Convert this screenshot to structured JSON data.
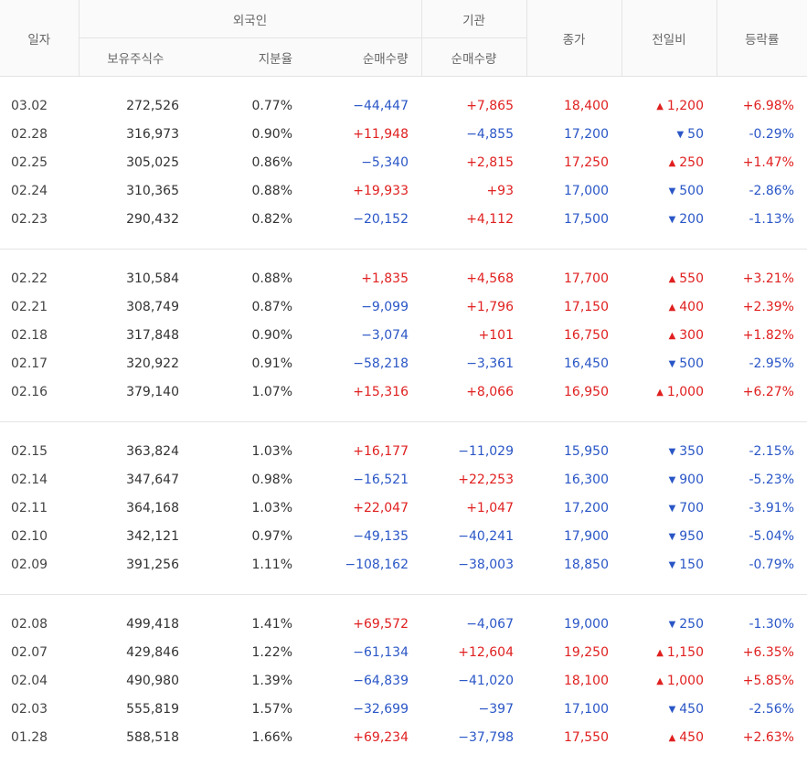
{
  "header": {
    "date": "일자",
    "foreign": "외국인",
    "institution": "기관",
    "close": "종가",
    "change": "전일비",
    "rate": "등락률",
    "holdings": "보유주식수",
    "ratio": "지분율",
    "foreign_net": "순매수량",
    "inst_net": "순매수량"
  },
  "groups": [
    [
      {
        "date": "03.02",
        "holdings": "272,526",
        "ratio": "0.77%",
        "foreign_net": "−44,447",
        "inst_net": "+7,865",
        "close": "18,400",
        "dir": "up",
        "change": "1,200",
        "rate": "+6.98%"
      },
      {
        "date": "02.28",
        "holdings": "316,973",
        "ratio": "0.90%",
        "foreign_net": "+11,948",
        "inst_net": "−4,855",
        "close": "17,200",
        "dir": "down",
        "change": "50",
        "rate": "-0.29%"
      },
      {
        "date": "02.25",
        "holdings": "305,025",
        "ratio": "0.86%",
        "foreign_net": "−5,340",
        "inst_net": "+2,815",
        "close": "17,250",
        "dir": "up",
        "change": "250",
        "rate": "+1.47%"
      },
      {
        "date": "02.24",
        "holdings": "310,365",
        "ratio": "0.88%",
        "foreign_net": "+19,933",
        "inst_net": "+93",
        "close": "17,000",
        "dir": "down",
        "change": "500",
        "rate": "-2.86%"
      },
      {
        "date": "02.23",
        "holdings": "290,432",
        "ratio": "0.82%",
        "foreign_net": "−20,152",
        "inst_net": "+4,112",
        "close": "17,500",
        "dir": "down",
        "change": "200",
        "rate": "-1.13%"
      }
    ],
    [
      {
        "date": "02.22",
        "holdings": "310,584",
        "ratio": "0.88%",
        "foreign_net": "+1,835",
        "inst_net": "+4,568",
        "close": "17,700",
        "dir": "up",
        "change": "550",
        "rate": "+3.21%"
      },
      {
        "date": "02.21",
        "holdings": "308,749",
        "ratio": "0.87%",
        "foreign_net": "−9,099",
        "inst_net": "+1,796",
        "close": "17,150",
        "dir": "up",
        "change": "400",
        "rate": "+2.39%"
      },
      {
        "date": "02.18",
        "holdings": "317,848",
        "ratio": "0.90%",
        "foreign_net": "−3,074",
        "inst_net": "+101",
        "close": "16,750",
        "dir": "up",
        "change": "300",
        "rate": "+1.82%"
      },
      {
        "date": "02.17",
        "holdings": "320,922",
        "ratio": "0.91%",
        "foreign_net": "−58,218",
        "inst_net": "−3,361",
        "close": "16,450",
        "dir": "down",
        "change": "500",
        "rate": "-2.95%"
      },
      {
        "date": "02.16",
        "holdings": "379,140",
        "ratio": "1.07%",
        "foreign_net": "+15,316",
        "inst_net": "+8,066",
        "close": "16,950",
        "dir": "up",
        "change": "1,000",
        "rate": "+6.27%"
      }
    ],
    [
      {
        "date": "02.15",
        "holdings": "363,824",
        "ratio": "1.03%",
        "foreign_net": "+16,177",
        "inst_net": "−11,029",
        "close": "15,950",
        "dir": "down",
        "change": "350",
        "rate": "-2.15%"
      },
      {
        "date": "02.14",
        "holdings": "347,647",
        "ratio": "0.98%",
        "foreign_net": "−16,521",
        "inst_net": "+22,253",
        "close": "16,300",
        "dir": "down",
        "change": "900",
        "rate": "-5.23%"
      },
      {
        "date": "02.11",
        "holdings": "364,168",
        "ratio": "1.03%",
        "foreign_net": "+22,047",
        "inst_net": "+1,047",
        "close": "17,200",
        "dir": "down",
        "change": "700",
        "rate": "-3.91%"
      },
      {
        "date": "02.10",
        "holdings": "342,121",
        "ratio": "0.97%",
        "foreign_net": "−49,135",
        "inst_net": "−40,241",
        "close": "17,900",
        "dir": "down",
        "change": "950",
        "rate": "-5.04%"
      },
      {
        "date": "02.09",
        "holdings": "391,256",
        "ratio": "1.11%",
        "foreign_net": "−108,162",
        "inst_net": "−38,003",
        "close": "18,850",
        "dir": "down",
        "change": "150",
        "rate": "-0.79%"
      }
    ],
    [
      {
        "date": "02.08",
        "holdings": "499,418",
        "ratio": "1.41%",
        "foreign_net": "+69,572",
        "inst_net": "−4,067",
        "close": "19,000",
        "dir": "down",
        "change": "250",
        "rate": "-1.30%"
      },
      {
        "date": "02.07",
        "holdings": "429,846",
        "ratio": "1.22%",
        "foreign_net": "−61,134",
        "inst_net": "+12,604",
        "close": "19,250",
        "dir": "up",
        "change": "1,150",
        "rate": "+6.35%"
      },
      {
        "date": "02.04",
        "holdings": "490,980",
        "ratio": "1.39%",
        "foreign_net": "−64,839",
        "inst_net": "−41,020",
        "close": "18,100",
        "dir": "up",
        "change": "1,000",
        "rate": "+5.85%"
      },
      {
        "date": "02.03",
        "holdings": "555,819",
        "ratio": "1.57%",
        "foreign_net": "−32,699",
        "inst_net": "−397",
        "close": "17,100",
        "dir": "down",
        "change": "450",
        "rate": "-2.56%"
      },
      {
        "date": "01.28",
        "holdings": "588,518",
        "ratio": "1.66%",
        "foreign_net": "+69,234",
        "inst_net": "−37,798",
        "close": "17,550",
        "dir": "up",
        "change": "450",
        "rate": "+2.63%"
      }
    ]
  ],
  "colors": {
    "up": "#e02020",
    "down": "#2a56c6"
  },
  "icons": {
    "up": "triangle-up-icon",
    "down": "triangle-down-icon"
  }
}
